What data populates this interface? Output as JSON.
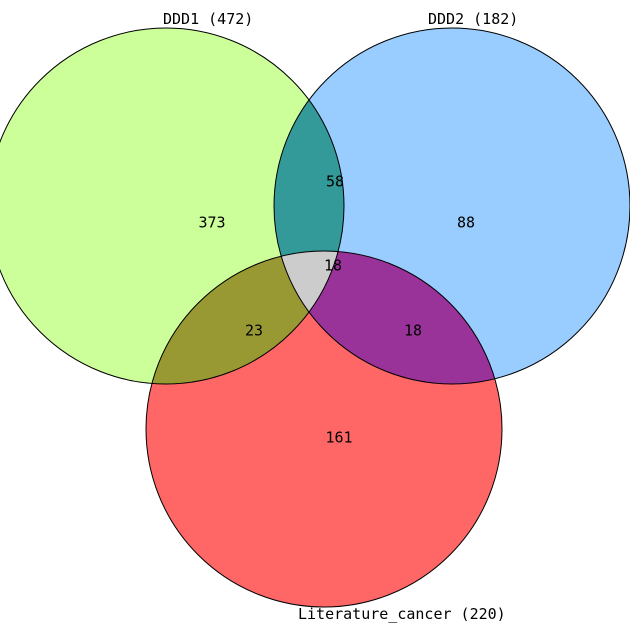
{
  "diagram": {
    "type": "venn3",
    "sets": [
      {
        "key": "a",
        "label": "DDD1 (472)",
        "color": "#ccff99"
      },
      {
        "key": "b",
        "label": "DDD2 (182)",
        "color": "#99ccff"
      },
      {
        "key": "c",
        "label": "Literature_cancer (220)",
        "color": "#ff6666"
      }
    ],
    "regions": {
      "a_only": {
        "count": "373",
        "color": "#ccff99"
      },
      "b_only": {
        "count": "88",
        "color": "#99ccff"
      },
      "c_only": {
        "count": "161",
        "color": "#ff6666"
      },
      "ab": {
        "count": "58",
        "color": "#339999"
      },
      "ac": {
        "count": "23",
        "color": "#999933"
      },
      "bc": {
        "count": "18",
        "color": "#993399"
      },
      "abc": {
        "count": "18",
        "color": "#cccccc"
      }
    }
  }
}
